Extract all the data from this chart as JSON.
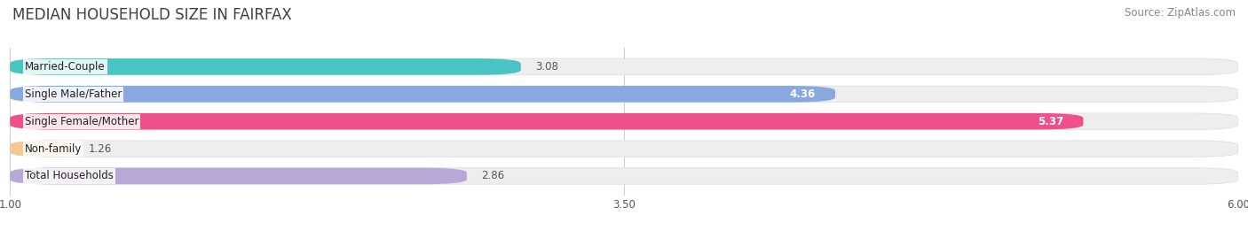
{
  "title": "MEDIAN HOUSEHOLD SIZE IN FAIRFAX",
  "source_text": "Source: ZipAtlas.com",
  "categories": [
    "Married-Couple",
    "Single Male/Father",
    "Single Female/Mother",
    "Non-family",
    "Total Households"
  ],
  "values": [
    3.08,
    4.36,
    5.37,
    1.26,
    2.86
  ],
  "bar_colors": [
    "#48c4c4",
    "#88a8e0",
    "#f0508a",
    "#f5c890",
    "#b8a8d8"
  ],
  "bar_bg_colors": [
    "#eeeeee",
    "#eeeeee",
    "#eeeeee",
    "#eeeeee",
    "#eeeeee"
  ],
  "value_white": [
    false,
    true,
    true,
    false,
    false
  ],
  "xlim": [
    1.0,
    6.0
  ],
  "xstart": 1.0,
  "xticks": [
    1.0,
    3.5,
    6.0
  ],
  "bar_height": 0.6,
  "label_fontsize": 8.5,
  "value_fontsize": 8.5,
  "title_fontsize": 12,
  "source_fontsize": 8.5
}
